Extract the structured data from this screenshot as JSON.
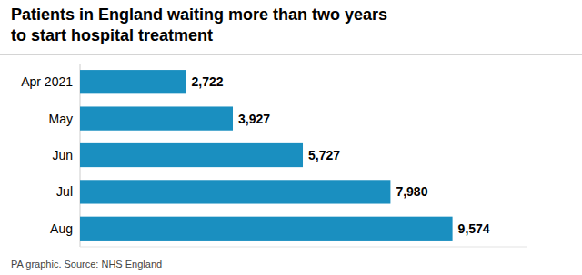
{
  "chart_data": {
    "type": "bar",
    "orientation": "horizontal",
    "title": "Patients in England waiting more than two years",
    "subtitle": "to start hospital treatment",
    "categories": [
      "Apr 2021",
      "May",
      "Jun",
      "Jul",
      "Aug"
    ],
    "values": [
      2722,
      3927,
      5727,
      7980,
      9574
    ],
    "value_labels": [
      "2,722",
      "3,927",
      "5,727",
      "7,980",
      "9,574"
    ],
    "data_labels": true,
    "color": "#1a8fc0",
    "xlim": [
      0,
      11500
    ],
    "tick_labels": "y",
    "grid": false,
    "annotations": [
      "PA graphic. Source: NHS England"
    ]
  }
}
